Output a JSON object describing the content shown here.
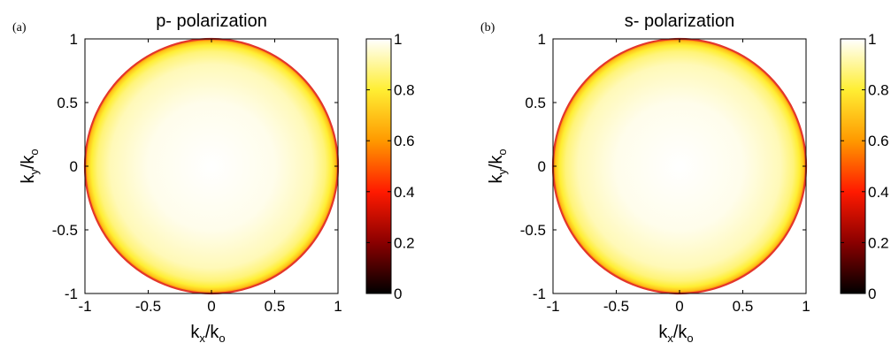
{
  "colors": {
    "colormap": [
      "#000000",
      "#8a0000",
      "#ff1a00",
      "#ff9900",
      "#ffee33",
      "#ffffff"
    ],
    "rim": "#e3362b",
    "axis": "#000000"
  },
  "chart_data": [
    {
      "type": "heatmap",
      "panel_label": "(a)",
      "title": "p- polarization",
      "xlabel": {
        "main": "k",
        "sub1": "x",
        "slash": "/k",
        "sub2": "o"
      },
      "ylabel": {
        "main": "k",
        "sub1": "y",
        "slash": "/k",
        "sub2": "o"
      },
      "xlim": [
        -1,
        1
      ],
      "ylim": [
        -1,
        1
      ],
      "xticks": [
        "-1",
        "-0.5",
        "0",
        "0.5",
        "1"
      ],
      "yticks": [
        "-1",
        "-0.5",
        "0",
        "0.5",
        "1"
      ],
      "description": "transmission is 1 inside the unit circle (|k| < k_o), falling to ~0.6 at the rim, 0 outside",
      "profile": {
        "r": [
          0,
          0.5,
          0.8,
          0.9,
          0.95,
          0.98,
          1.0
        ],
        "value": [
          1.0,
          0.98,
          0.93,
          0.87,
          0.8,
          0.7,
          0.55
        ]
      },
      "colorbar": {
        "ticks": [
          "0",
          "0.2",
          "0.4",
          "0.6",
          "0.8",
          "1"
        ],
        "range": [
          0,
          1
        ]
      }
    },
    {
      "type": "heatmap",
      "panel_label": "(b)",
      "title": "s- polarization",
      "xlabel": {
        "main": "k",
        "sub1": "x",
        "slash": "/k",
        "sub2": "o"
      },
      "ylabel": {
        "main": "k",
        "sub1": "y",
        "slash": "/k",
        "sub2": "o"
      },
      "xlim": [
        -1,
        1
      ],
      "ylim": [
        -1,
        1
      ],
      "xticks": [
        "-1",
        "-0.5",
        "0",
        "0.5",
        "1"
      ],
      "yticks": [
        "-1",
        "-0.5",
        "0",
        "0.5",
        "1"
      ],
      "description": "transmission is 1 inside the unit circle (|k| < k_o), falling to ~0.6 at the rim, 0 outside",
      "profile": {
        "r": [
          0,
          0.5,
          0.8,
          0.9,
          0.95,
          0.98,
          1.0
        ],
        "value": [
          1.0,
          0.98,
          0.93,
          0.87,
          0.8,
          0.7,
          0.55
        ]
      },
      "colorbar": {
        "ticks": [
          "0",
          "0.2",
          "0.4",
          "0.6",
          "0.8",
          "1"
        ],
        "range": [
          0,
          1
        ]
      }
    }
  ]
}
